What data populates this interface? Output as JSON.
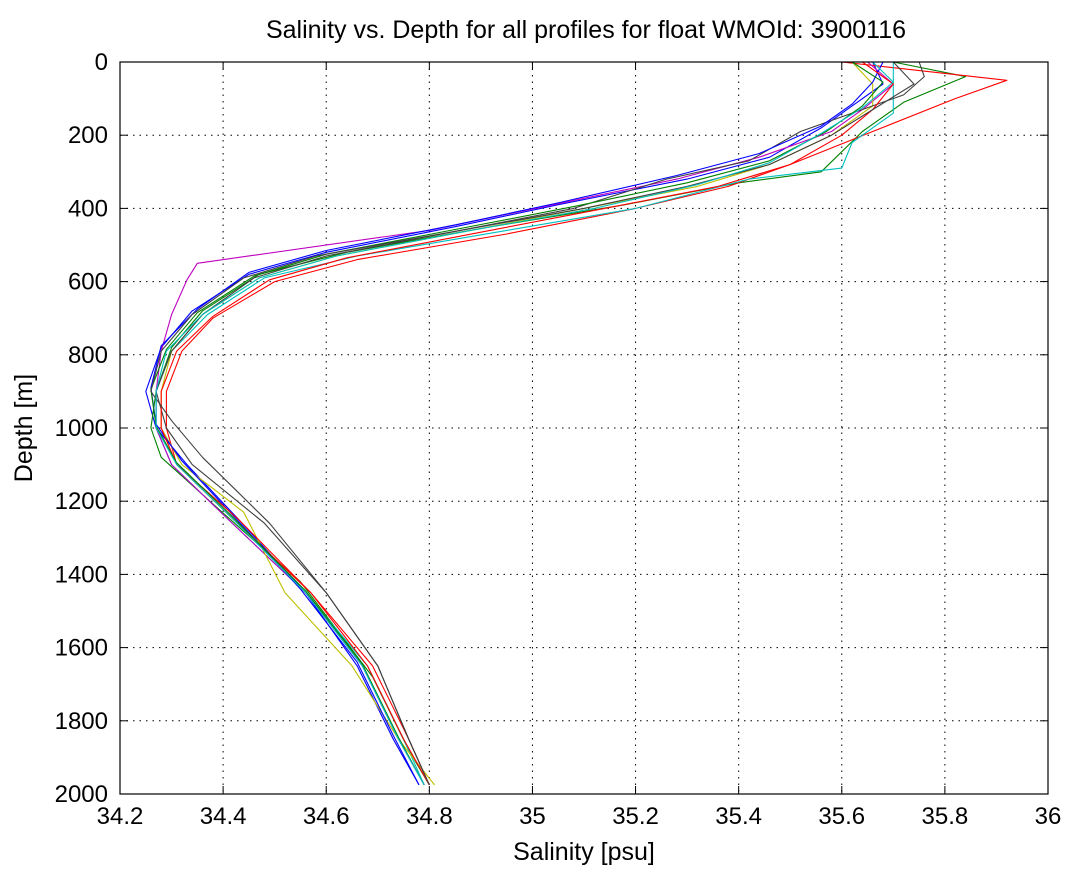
{
  "chart_data": {
    "type": "line",
    "title": "Salinity vs. Depth for all profiles for float WMOId: 3900116",
    "xlabel": "Salinity [psu]",
    "ylabel": "Depth [m]",
    "xlim": [
      34.2,
      36
    ],
    "ylim": [
      2000,
      0
    ],
    "y_reversed": true,
    "grid": true,
    "xticks": [
      "34.2",
      "34.4",
      "34.6",
      "34.8",
      "35",
      "35.2",
      "35.4",
      "35.6",
      "35.8",
      "36"
    ],
    "yticks": [
      "0",
      "200",
      "400",
      "600",
      "800",
      "1000",
      "1200",
      "1400",
      "1600",
      "1800",
      "2000"
    ],
    "series": [
      {
        "color": "#0000ff",
        "x": [
          35.66,
          35.68,
          35.62,
          35.56,
          35.46,
          35.3,
          35.05,
          34.85,
          34.6,
          34.45,
          34.34,
          34.28,
          34.25,
          34.27,
          34.33,
          34.43,
          34.56,
          34.66,
          34.73,
          34.78
        ],
        "y": [
          0,
          60,
          120,
          180,
          260,
          320,
          390,
          450,
          520,
          580,
          680,
          780,
          900,
          1000,
          1100,
          1250,
          1450,
          1650,
          1850,
          1975
        ]
      },
      {
        "color": "#008000",
        "x": [
          35.7,
          35.84,
          35.72,
          35.64,
          35.56,
          35.4,
          35.18,
          34.92,
          34.64,
          34.47,
          34.36,
          34.3,
          34.27,
          34.26,
          34.28,
          34.39,
          34.55,
          34.69,
          34.76,
          34.8
        ],
        "y": [
          0,
          40,
          110,
          190,
          300,
          330,
          390,
          450,
          520,
          580,
          680,
          780,
          900,
          1000,
          1080,
          1220,
          1420,
          1680,
          1880,
          1975
        ]
      },
      {
        "color": "#ff0000",
        "x": [
          35.6,
          35.92,
          35.82,
          35.66,
          35.5,
          35.38,
          35.2,
          34.95,
          34.66,
          34.5,
          34.38,
          34.32,
          34.29,
          34.29,
          34.31,
          34.42,
          34.57,
          34.69,
          34.76,
          34.8
        ],
        "y": [
          0,
          50,
          100,
          190,
          280,
          340,
          400,
          470,
          540,
          600,
          700,
          790,
          900,
          1000,
          1100,
          1250,
          1450,
          1650,
          1850,
          1975
        ]
      },
      {
        "color": "#00bfbf",
        "x": [
          35.7,
          35.7,
          35.7,
          35.62,
          35.6,
          35.42,
          35.2,
          34.95,
          34.66,
          34.48,
          34.37,
          34.3,
          34.27,
          34.27,
          34.3,
          34.41,
          34.56,
          34.68,
          34.75,
          34.79
        ],
        "y": [
          0,
          50,
          140,
          220,
          290,
          320,
          400,
          460,
          530,
          590,
          690,
          790,
          900,
          1000,
          1100,
          1250,
          1450,
          1650,
          1850,
          1975
        ]
      },
      {
        "color": "#bf00bf",
        "x": [
          35.65,
          35.7,
          35.64,
          35.58,
          35.44,
          35.28,
          35.04,
          34.8,
          34.35,
          34.33,
          34.3,
          34.28,
          34.27,
          34.27,
          34.3,
          34.41,
          34.56,
          34.67,
          34.74,
          34.79
        ],
        "y": [
          0,
          60,
          130,
          190,
          260,
          320,
          390,
          460,
          550,
          595,
          690,
          790,
          900,
          1000,
          1100,
          1250,
          1450,
          1650,
          1850,
          1975
        ]
      },
      {
        "color": "#bfbf00",
        "x": [
          35.62,
          35.66,
          35.66,
          35.58,
          35.46,
          35.32,
          35.1,
          34.88,
          34.62,
          34.47,
          34.36,
          34.3,
          34.28,
          34.28,
          34.32,
          34.44,
          34.52,
          34.65,
          34.74,
          34.81
        ],
        "y": [
          0,
          60,
          120,
          200,
          280,
          340,
          400,
          460,
          530,
          590,
          690,
          790,
          900,
          1000,
          1100,
          1230,
          1450,
          1650,
          1850,
          1975
        ]
      },
      {
        "color": "#404040",
        "x": [
          35.75,
          35.76,
          35.72,
          35.52,
          35.42,
          35.26,
          35.08,
          34.86,
          34.6,
          34.46,
          34.36,
          34.3,
          34.27,
          34.29,
          34.34,
          34.48,
          34.6,
          34.7,
          34.76,
          34.8
        ],
        "y": [
          0,
          40,
          90,
          190,
          270,
          320,
          400,
          460,
          530,
          590,
          690,
          790,
          900,
          1000,
          1100,
          1260,
          1450,
          1650,
          1850,
          1975
        ]
      },
      {
        "color": "#0000ff",
        "x": [
          35.68,
          35.66,
          35.62,
          35.56,
          35.44,
          35.28,
          35.05,
          34.85,
          34.6,
          34.45,
          34.35,
          34.28,
          34.26,
          34.27,
          34.32,
          34.42,
          34.55,
          34.66,
          34.73,
          34.78
        ],
        "y": [
          0,
          55,
          115,
          175,
          250,
          310,
          385,
          445,
          515,
          575,
          675,
          775,
          890,
          990,
          1090,
          1240,
          1440,
          1640,
          1840,
          1975
        ]
      },
      {
        "color": "#ff0000",
        "x": [
          35.64,
          35.7,
          35.66,
          35.6,
          35.5,
          35.36,
          35.14,
          34.9,
          34.64,
          34.49,
          34.38,
          34.31,
          34.28,
          34.28,
          34.31,
          34.43,
          34.57,
          34.68,
          34.75,
          34.8
        ],
        "y": [
          0,
          60,
          130,
          200,
          280,
          340,
          400,
          465,
          535,
          595,
          695,
          790,
          900,
          1000,
          1100,
          1250,
          1450,
          1650,
          1850,
          1975
        ]
      },
      {
        "color": "#008000",
        "x": [
          35.62,
          35.68,
          35.64,
          35.57,
          35.46,
          35.3,
          35.08,
          34.86,
          34.6,
          34.46,
          34.35,
          34.29,
          34.26,
          34.27,
          34.31,
          34.42,
          34.56,
          34.67,
          34.74,
          34.79
        ],
        "y": [
          0,
          55,
          120,
          190,
          270,
          330,
          395,
          455,
          525,
          585,
          685,
          785,
          895,
          995,
          1095,
          1245,
          1445,
          1645,
          1845,
          1975
        ]
      },
      {
        "color": "#404040",
        "x": [
          35.7,
          35.74,
          35.66,
          35.58,
          35.46,
          35.3,
          35.1,
          34.86,
          34.58,
          34.44,
          34.34,
          34.28,
          34.26,
          34.3,
          34.36,
          34.49,
          34.6,
          34.7,
          34.76,
          34.8
        ],
        "y": [
          0,
          60,
          130,
          200,
          280,
          340,
          400,
          460,
          530,
          590,
          690,
          790,
          900,
          980,
          1080,
          1260,
          1450,
          1650,
          1850,
          1975
        ]
      },
      {
        "color": "#00bfbf",
        "x": [
          35.66,
          35.7,
          35.64,
          35.56,
          35.46,
          35.32,
          35.12,
          34.88,
          34.62,
          34.47,
          34.36,
          34.29,
          34.27,
          34.27,
          34.31,
          34.42,
          34.56,
          34.67,
          34.74,
          34.79
        ],
        "y": [
          0,
          55,
          125,
          195,
          275,
          335,
          400,
          460,
          530,
          590,
          690,
          790,
          900,
          1000,
          1100,
          1250,
          1450,
          1650,
          1850,
          1975
        ]
      }
    ]
  }
}
